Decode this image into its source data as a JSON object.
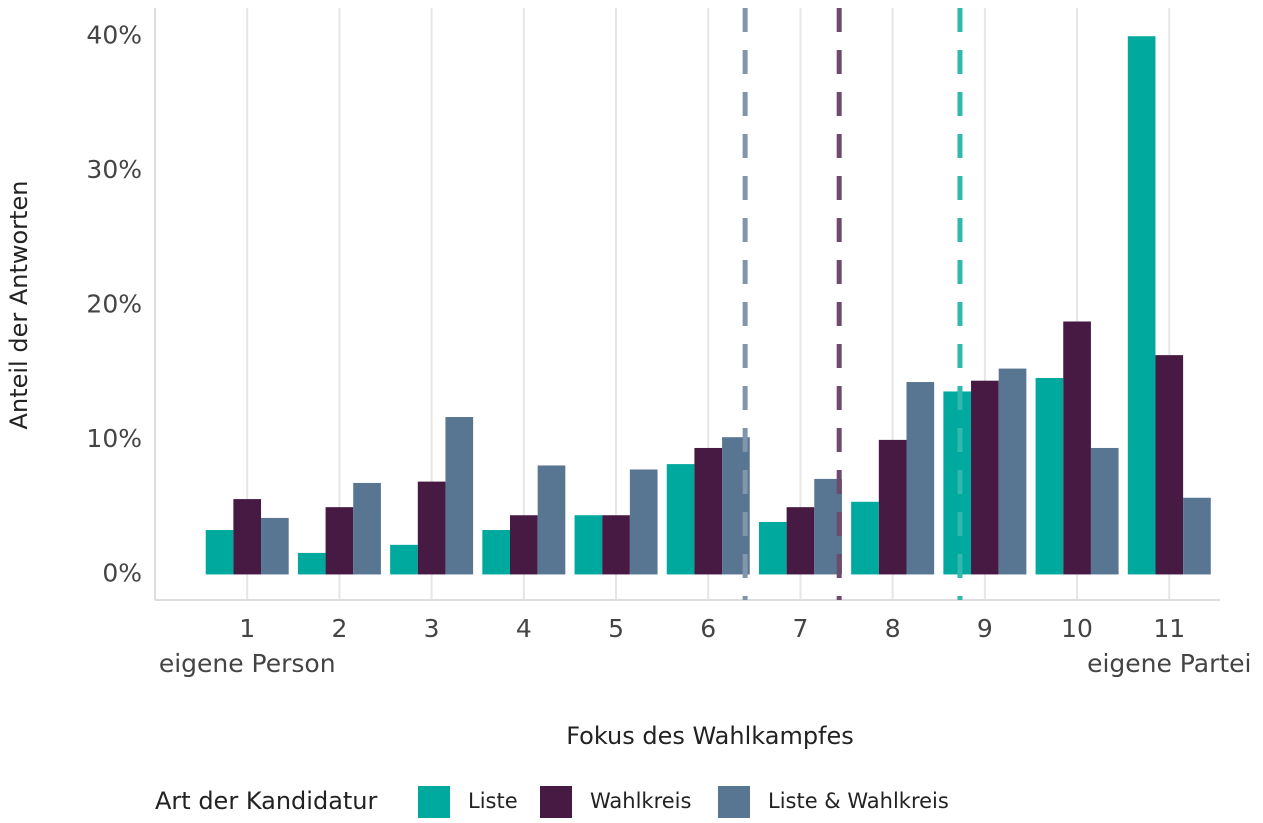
{
  "chart_data": {
    "type": "bar",
    "x_title": "Fokus des Wahlkampfes",
    "y_title": "Anteil der Antworten",
    "legend_title": "Art der Kandidatur",
    "x": [
      1,
      2,
      3,
      4,
      5,
      6,
      7,
      8,
      9,
      10,
      11
    ],
    "x_annotations": [
      {
        "x": 1,
        "text": "eigene Person"
      },
      {
        "x": 11,
        "text": "eigene Partei"
      }
    ],
    "series": [
      {
        "name": "Liste",
        "color": "#00a99d",
        "values": [
          3.3,
          1.6,
          2.2,
          3.3,
          4.4,
          8.2,
          3.9,
          5.4,
          13.6,
          14.6,
          40.0
        ]
      },
      {
        "name": "Wahlkreis",
        "color": "#461a42",
        "values": [
          5.6,
          5.0,
          6.9,
          4.4,
          4.4,
          9.4,
          5.0,
          10.0,
          14.4,
          18.8,
          16.3
        ]
      },
      {
        "name": "Liste & Wahlkreis",
        "color": "#587592",
        "values": [
          4.2,
          6.8,
          11.7,
          8.1,
          7.8,
          10.2,
          7.1,
          14.3,
          15.3,
          9.4,
          5.7
        ]
      }
    ],
    "vlines": [
      {
        "x": 6.4,
        "color": "#8296ab"
      },
      {
        "x": 7.42,
        "color": "#6e4a6c"
      },
      {
        "x": 8.73,
        "color": "#33b8ad"
      }
    ],
    "xlim": [
      0,
      11.55
    ],
    "xticks": [
      1,
      2,
      3,
      4,
      5,
      6,
      7,
      8,
      9,
      10,
      11
    ],
    "ylim": [
      -1.9,
      42.1
    ],
    "yticks": [
      {
        "value": 0,
        "label": "0%"
      },
      {
        "value": 10,
        "label": "10%"
      },
      {
        "value": 20,
        "label": "20%"
      },
      {
        "value": 30,
        "label": "30%"
      },
      {
        "value": 40,
        "label": "40%"
      }
    ],
    "grid": "x",
    "legend": "bottom"
  }
}
